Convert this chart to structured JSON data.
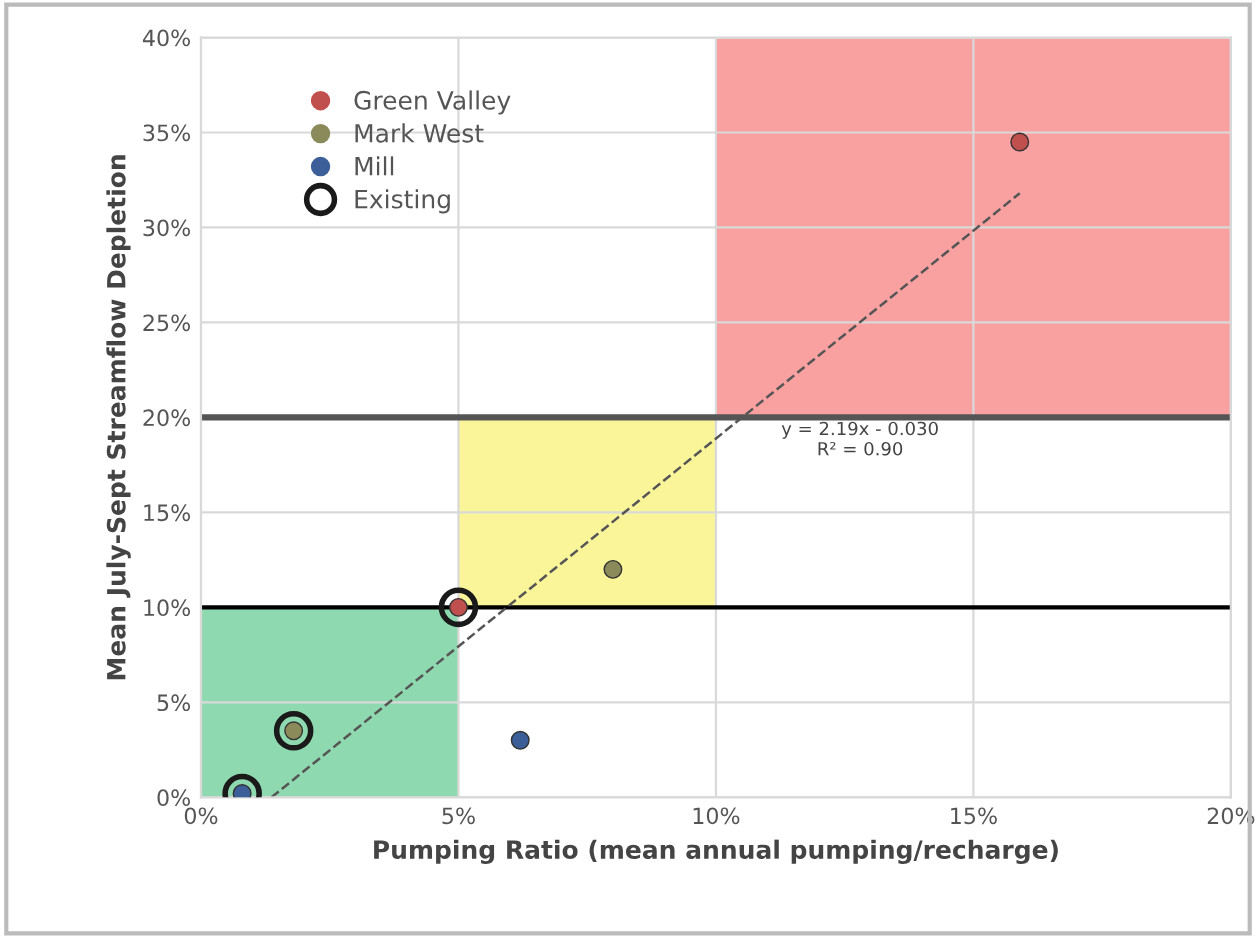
{
  "chart_data": {
    "type": "scatter",
    "xlabel": "Pumping Ratio (mean annual pumping/recharge)",
    "ylabel": "Mean July-Sept Streamflow Depletion",
    "xlim": [
      0,
      20
    ],
    "ylim": [
      0,
      40
    ],
    "xticks": [
      {
        "value": 0,
        "label": "0%"
      },
      {
        "value": 5,
        "label": "5%"
      },
      {
        "value": 10,
        "label": "10%"
      },
      {
        "value": 15,
        "label": "15%"
      },
      {
        "value": 20,
        "label": "20%"
      }
    ],
    "yticks": [
      {
        "value": 0,
        "label": "0%"
      },
      {
        "value": 5,
        "label": "5%"
      },
      {
        "value": 10,
        "label": "10%"
      },
      {
        "value": 15,
        "label": "15%"
      },
      {
        "value": 20,
        "label": "20%"
      },
      {
        "value": 25,
        "label": "25%"
      },
      {
        "value": 30,
        "label": "30%"
      },
      {
        "value": 35,
        "label": "35%"
      },
      {
        "value": 40,
        "label": "40%"
      }
    ],
    "grid": true,
    "legend": "top left",
    "marker": "circle",
    "series": [
      {
        "name": "Green Valley",
        "color": "#c0504d",
        "x": [
          15.9,
          5.0
        ],
        "values": [
          34.5,
          10.0
        ]
      },
      {
        "name": "Mark West",
        "color": "#8a8a5a",
        "x": [
          8.0,
          1.8
        ],
        "values": [
          12.0,
          3.5
        ]
      },
      {
        "name": "Mill",
        "color": "#3c5f9a",
        "x": [
          6.2,
          0.8
        ],
        "values": [
          3.0,
          0.2
        ]
      },
      {
        "name": "Existing",
        "color": "#1a1a1a",
        "marker": "circle",
        "x": [
          0.8,
          1.8,
          5.0
        ],
        "values": [
          0.2,
          3.5,
          10.0
        ]
      },
      {
        "type": "line",
        "marker": "none",
        "color": "#555555",
        "line_style": "dashed",
        "x": [
          1.37,
          15.9
        ],
        "values": [
          0.0,
          31.8
        ]
      }
    ],
    "bands": [
      {
        "axis": "x",
        "from": 0,
        "to": 5,
        "color": "#8fd9b0"
      },
      {
        "axis": "x",
        "from": 5,
        "to": 10,
        "color": "#fbf59a"
      },
      {
        "axis": "x",
        "from": 10,
        "to": 20,
        "color": "#f9a0a0"
      }
    ],
    "ref_lines": [
      {
        "axis": "y",
        "value": 20,
        "color": "#555555"
      },
      {
        "axis": "y",
        "value": 10,
        "color": "#000000"
      }
    ],
    "annotations": [
      "y = 2.19x - 0.030\nR² = 0.90"
    ]
  }
}
